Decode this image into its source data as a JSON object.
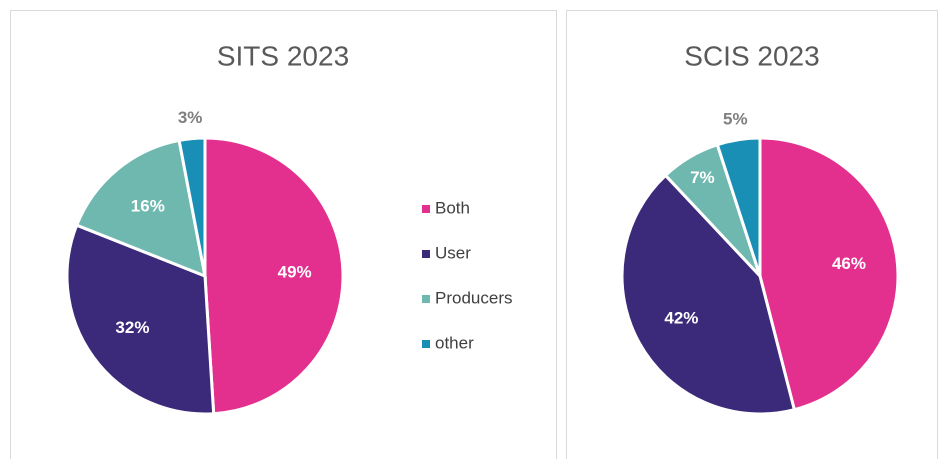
{
  "chart_data": [
    {
      "type": "pie",
      "title": "SITS 2023",
      "categories": [
        "Both",
        "User",
        "Producers",
        "other"
      ],
      "values": [
        49,
        32,
        16,
        3
      ],
      "value_labels": [
        "49%",
        "32%",
        "16%",
        "3%"
      ],
      "colors": [
        "#e3308f",
        "#3b2a7a",
        "#6fb8b0",
        "#1a8fb5"
      ],
      "legend": "right"
    },
    {
      "type": "pie",
      "title": "SCIS 2023",
      "values": [
        46,
        42,
        7,
        5
      ],
      "value_labels": [
        "46%",
        "42%",
        "7%",
        "5%"
      ],
      "colors": [
        "#e3308f",
        "#3b2a7a",
        "#6fb8b0",
        "#1a8fb5"
      ]
    }
  ]
}
